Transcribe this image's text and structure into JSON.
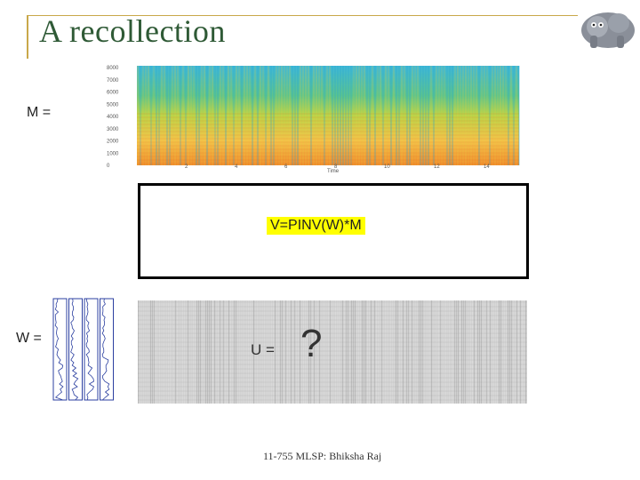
{
  "slide": {
    "title": "A recollection",
    "footer": "11-755 MLSP: Bhiksha Raj"
  },
  "labels": {
    "m": "M =",
    "w": "W =",
    "u": "U =",
    "question": "?",
    "formula": "V=PINV(W)*M"
  },
  "spectrogram": {
    "y_ticks": [
      "8000",
      "7000",
      "6000",
      "5000",
      "4000",
      "3000",
      "2000",
      "1000",
      "0"
    ],
    "x_ticks": [
      "2",
      "4",
      "6",
      "8",
      "10",
      "12",
      "14"
    ],
    "xlabel": "Time"
  },
  "colors": {
    "title": "#2f5a36",
    "rule": "#c9a84a",
    "formula_bg": "#ffff00",
    "basis_line": "#2b3fa0"
  }
}
